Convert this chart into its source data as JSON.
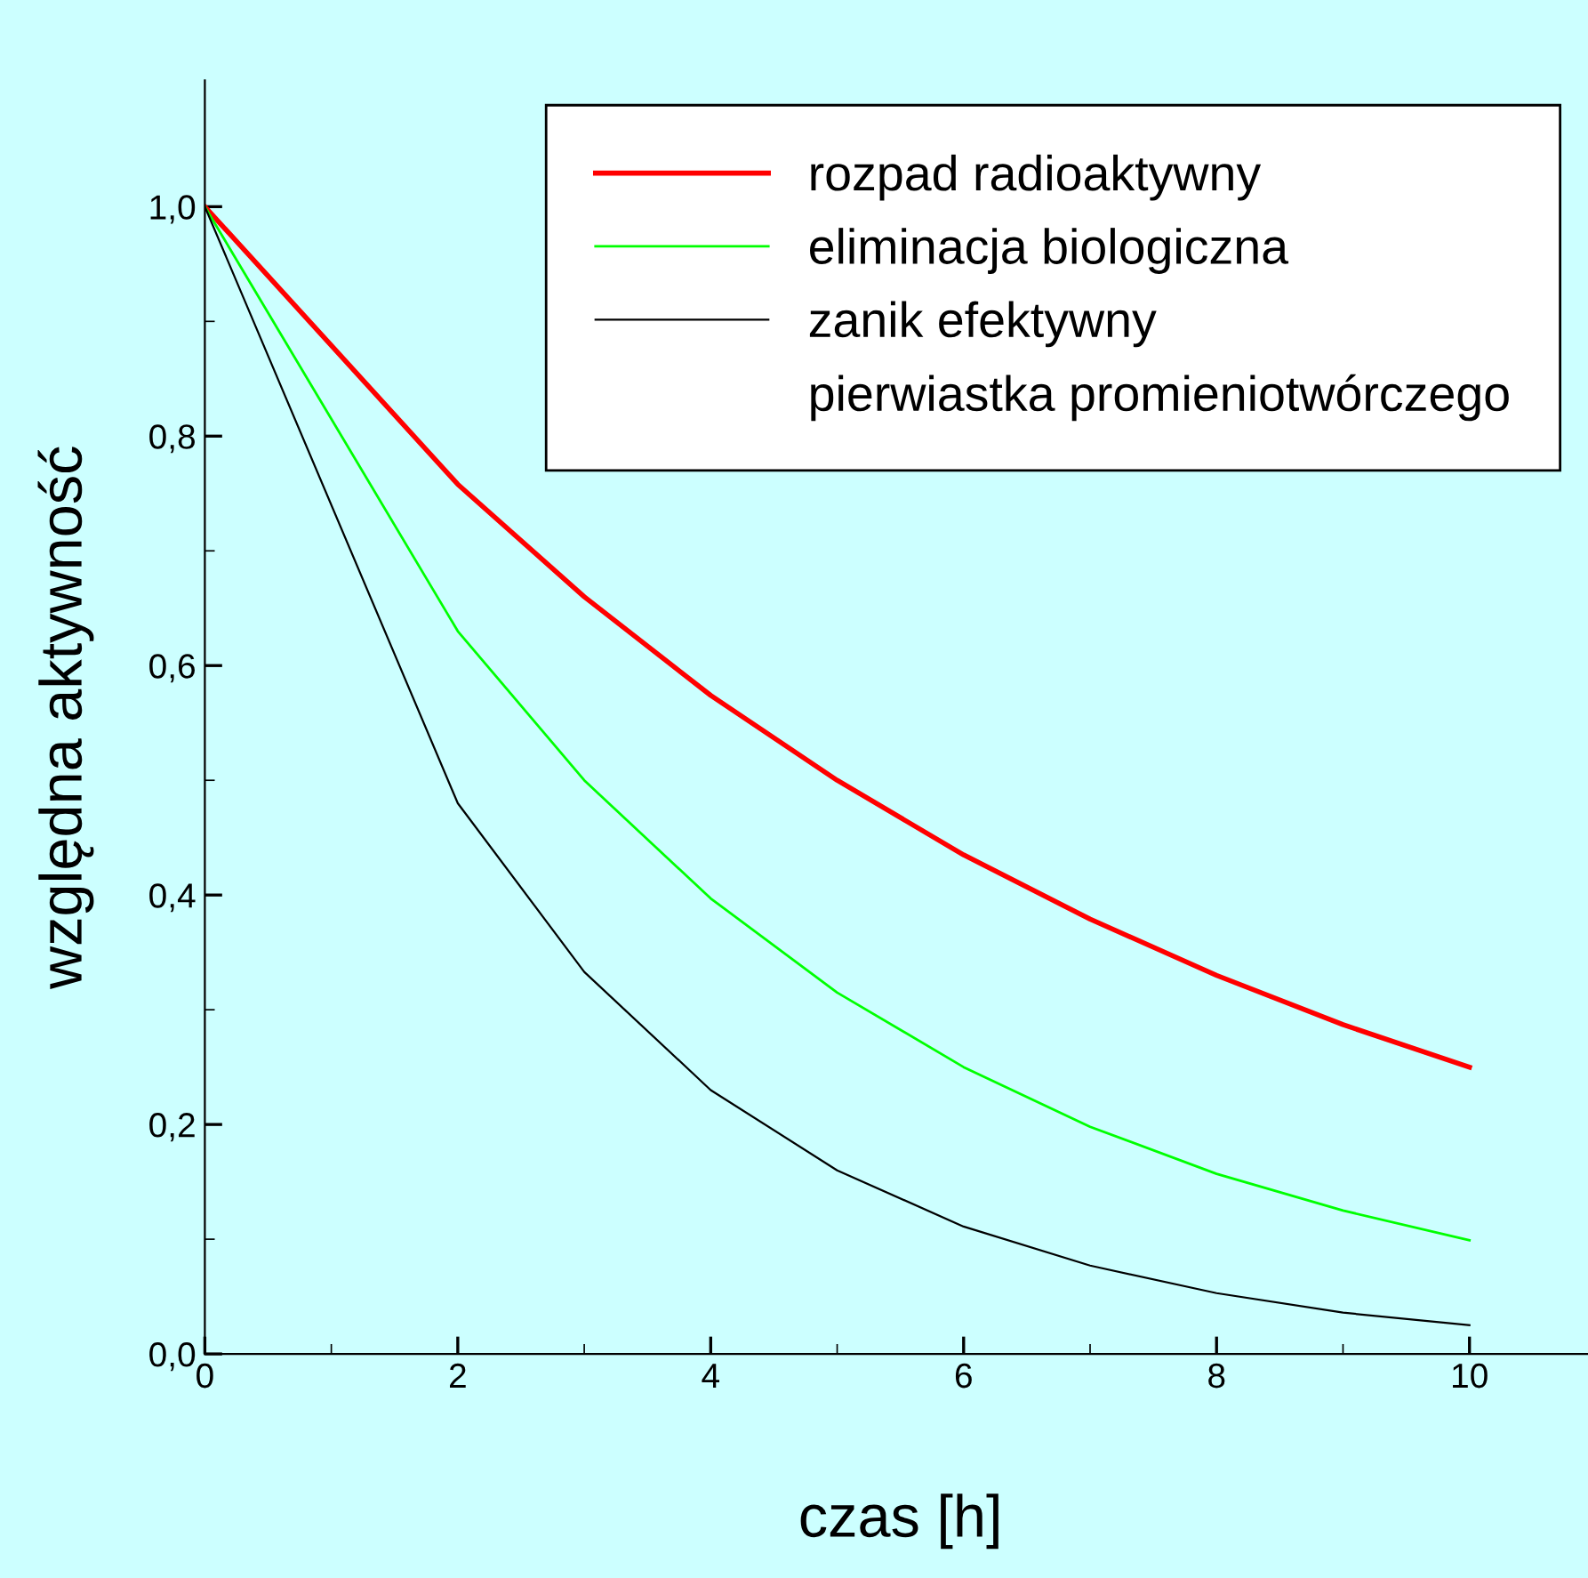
{
  "chart_data": {
    "type": "line",
    "xlabel": "czas [h]",
    "ylabel": "względna aktywność",
    "x": [
      0,
      2,
      3,
      4,
      5,
      6,
      7,
      8,
      9,
      10
    ],
    "series": [
      {
        "name": "rozpad radioaktywny",
        "color": "#ff0000",
        "values": [
          1.0,
          0.758,
          0.66,
          0.574,
          0.5,
          0.435,
          0.379,
          0.33,
          0.287,
          0.25
        ]
      },
      {
        "name": "eliminacja biologiczna",
        "color": "#00ff00",
        "values": [
          1.0,
          0.63,
          0.5,
          0.397,
          0.315,
          0.25,
          0.198,
          0.157,
          0.125,
          0.099
        ]
      },
      {
        "name": "zanik efektywny",
        "color": "#000000",
        "values": [
          1.0,
          0.48,
          0.333,
          0.23,
          0.16,
          0.111,
          0.077,
          0.053,
          0.036,
          0.025
        ]
      }
    ],
    "annotations": [
      "pierwiastka promieniotwórczego"
    ],
    "xlim": [
      0,
      11
    ],
    "ylim": [
      0,
      1.11
    ],
    "xticks": [
      0,
      2,
      4,
      6,
      8,
      10
    ],
    "yticks": [
      {
        "value": 0,
        "label": "0,0"
      },
      {
        "value": 0.2,
        "label": "0,2"
      },
      {
        "value": 0.4,
        "label": "0,4"
      },
      {
        "value": 0.6,
        "label": "0,6"
      },
      {
        "value": 0.8,
        "label": "0,8"
      },
      {
        "value": 1.0,
        "label": "1,0"
      }
    ],
    "legend": "top right",
    "grid": false,
    "marker": "none",
    "line_style": "solid"
  }
}
